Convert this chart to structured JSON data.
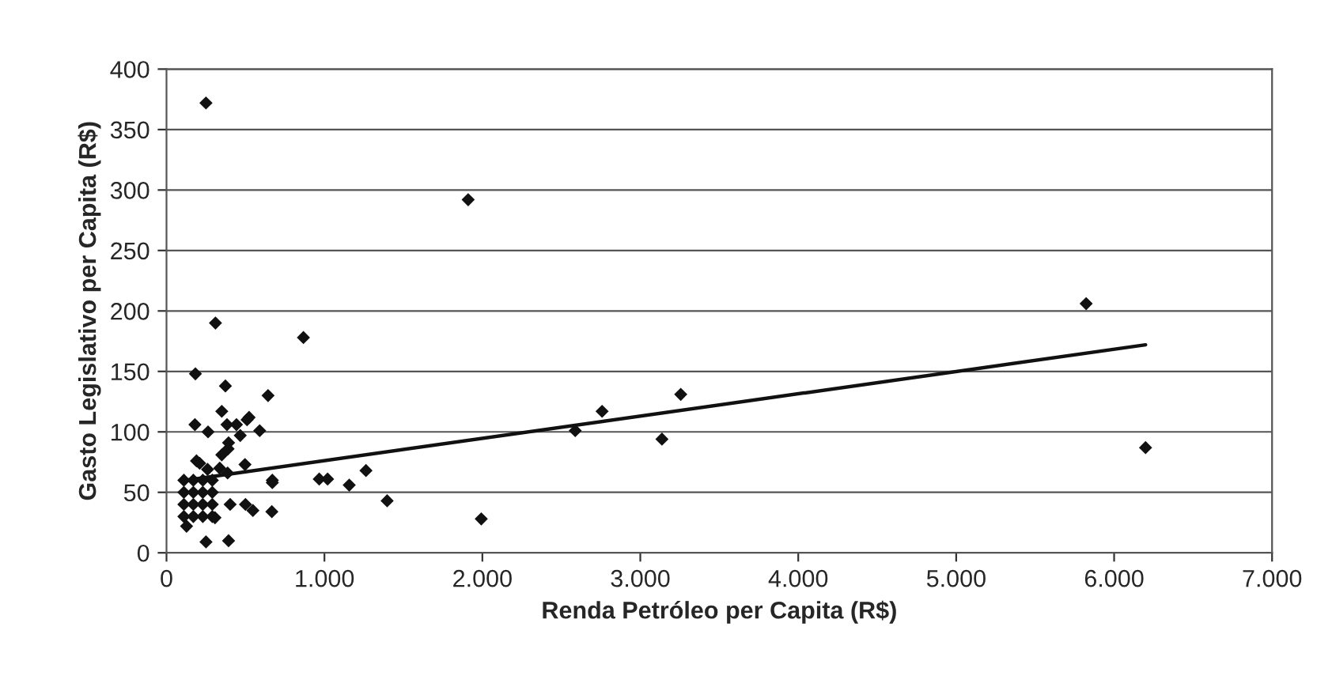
{
  "chart_data": {
    "type": "scatter",
    "xlabel": "Renda Petróleo per Capita (R$)",
    "ylabel": "Gasto Legislativo per Capita (R$)",
    "xlim": [
      0,
      7000
    ],
    "xticks": [
      {
        "value": 0,
        "label": "0"
      },
      {
        "value": 1000,
        "label": "1.000"
      },
      {
        "value": 2000,
        "label": "2.000"
      },
      {
        "value": 3000,
        "label": "3.000"
      },
      {
        "value": 4000,
        "label": "4.000"
      },
      {
        "value": 5000,
        "label": "5.000"
      },
      {
        "value": 6000,
        "label": "6.000"
      },
      {
        "value": 7000,
        "label": "7.000"
      }
    ],
    "ylim": [
      0,
      400
    ],
    "yticks": [
      0,
      50,
      100,
      150,
      200,
      250,
      300,
      350,
      400
    ],
    "grid": "y",
    "legend": false,
    "marker": "diamond",
    "series": [
      {
        "color": "#111111",
        "x": [
          250,
          1910,
          310,
          867,
          183,
          373,
          643,
          350,
          180,
          263,
          383,
          443,
          523,
          510,
          590,
          467,
          393,
          390,
          350,
          190,
          210,
          260,
          337,
          387,
          497,
          967,
          1020,
          1157,
          1263,
          1397,
          670,
          670,
          667,
          500,
          547,
          403,
          307,
          250,
          393,
          127,
          1993,
          2588,
          2758,
          3137,
          3256,
          5823,
          6199,
          110,
          170,
          230,
          290,
          110,
          170,
          230,
          290,
          110,
          170,
          230,
          290,
          110,
          170,
          230,
          290
        ],
        "values": [
          372,
          292,
          190,
          178,
          148,
          138,
          130,
          117,
          106,
          100,
          106,
          106,
          112,
          110,
          101,
          97,
          91,
          86,
          81,
          76,
          74,
          69,
          70,
          66,
          73,
          61,
          61,
          56,
          68,
          43,
          60,
          58,
          34,
          40,
          35,
          40,
          29,
          9,
          10,
          22,
          28,
          101,
          117,
          94,
          131,
          206,
          87,
          30,
          30,
          30,
          30,
          40,
          40,
          40,
          40,
          50,
          50,
          50,
          50,
          60,
          60,
          60,
          60
        ]
      },
      {
        "type": "line",
        "color": "#111111",
        "line_style": "solid",
        "marker": "none",
        "x": [
          120,
          6199
        ],
        "values": [
          60,
          172
        ]
      }
    ]
  }
}
